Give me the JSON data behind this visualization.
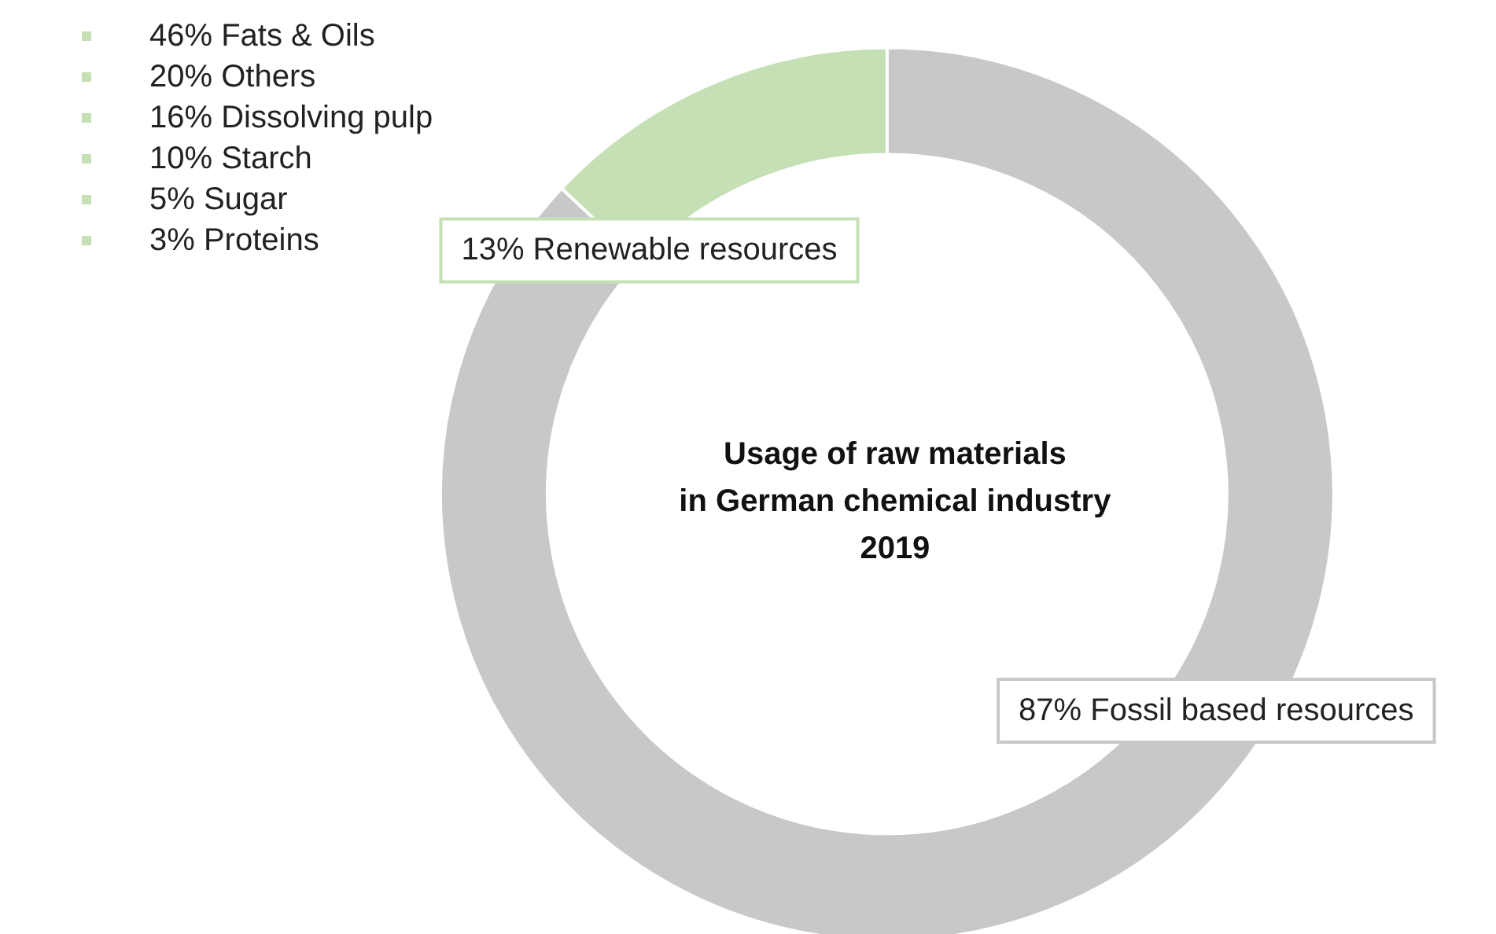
{
  "chart_data": {
    "type": "donut",
    "title": "Usage of raw materials\nin German chemical industry\n2019",
    "categories": [
      "Renewable resources",
      "Fossil based resources"
    ],
    "values": [
      13,
      87
    ],
    "colors": [
      "#c5e0b4",
      "#c8c8c8"
    ],
    "value_labels": [
      "13%",
      "87%"
    ],
    "annotations": [
      "46% Fats & Oils",
      "20% Others",
      "16% Dissolving pulp",
      "10% Starch",
      "5% Sugar",
      "3% Proteins"
    ],
    "legend": false
  }
}
